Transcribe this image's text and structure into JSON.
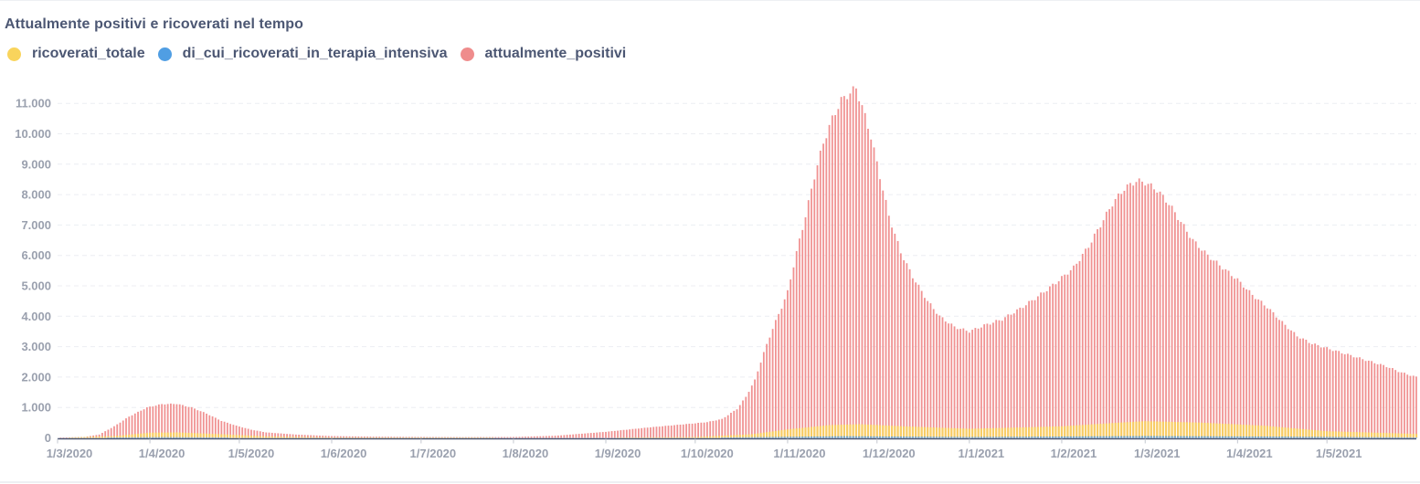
{
  "title": "Attualmente positivi e ricoverati nel tempo",
  "legend": [
    {
      "label": "ricoverati_totale",
      "color": "#f9d45c"
    },
    {
      "label": "di_cui_ricoverati_in_terapia_intensiva",
      "color": "#509ee3"
    },
    {
      "label": "attualmente_positivi",
      "color": "#ef8c8c"
    }
  ],
  "chart_data": {
    "type": "bar",
    "ylim": [
      0,
      11500
    ],
    "yticks": [
      0,
      1000,
      2000,
      3000,
      4000,
      5000,
      6000,
      7000,
      8000,
      9000,
      10000,
      11000
    ],
    "ytick_labels": [
      "0",
      "1.000",
      "2.000",
      "3.000",
      "4.000",
      "5.000",
      "6.000",
      "7.000",
      "8.000",
      "9.000",
      "10.000",
      "11.000"
    ],
    "x_start": "2020-03-01",
    "x_end": "2021-05-31",
    "xticks": [
      "2020-03-01",
      "2020-04-01",
      "2020-05-01",
      "2020-06-01",
      "2020-07-01",
      "2020-08-01",
      "2020-09-01",
      "2020-10-01",
      "2020-11-01",
      "2020-12-01",
      "2021-01-01",
      "2021-02-01",
      "2021-03-01",
      "2021-04-01",
      "2021-05-01"
    ],
    "xtick_labels": [
      "1/3/2020",
      "1/4/2020",
      "1/5/2020",
      "1/6/2020",
      "1/7/2020",
      "1/8/2020",
      "1/9/2020",
      "1/10/2020",
      "1/11/2020",
      "1/12/2020",
      "1/1/2021",
      "1/2/2021",
      "1/3/2021",
      "1/4/2021",
      "1/5/2021"
    ],
    "grid": true,
    "legend_position": "top-left",
    "series": [
      {
        "name": "attualmente_positivi",
        "color": "#ef8c8c",
        "points": [
          [
            "2020-03-01",
            10
          ],
          [
            "2020-03-10",
            30
          ],
          [
            "2020-03-15",
            110
          ],
          [
            "2020-03-20",
            380
          ],
          [
            "2020-03-25",
            700
          ],
          [
            "2020-03-31",
            1000
          ],
          [
            "2020-04-05",
            1110
          ],
          [
            "2020-04-10",
            1120
          ],
          [
            "2020-04-15",
            1000
          ],
          [
            "2020-04-20",
            800
          ],
          [
            "2020-04-25",
            560
          ],
          [
            "2020-04-30",
            400
          ],
          [
            "2020-05-05",
            270
          ],
          [
            "2020-05-10",
            180
          ],
          [
            "2020-05-20",
            110
          ],
          [
            "2020-06-01",
            60
          ],
          [
            "2020-06-15",
            40
          ],
          [
            "2020-07-01",
            30
          ],
          [
            "2020-07-15",
            25
          ],
          [
            "2020-08-01",
            30
          ],
          [
            "2020-08-15",
            70
          ],
          [
            "2020-09-01",
            200
          ],
          [
            "2020-09-15",
            340
          ],
          [
            "2020-10-01",
            480
          ],
          [
            "2020-10-05",
            520
          ],
          [
            "2020-10-10",
            620
          ],
          [
            "2020-10-15",
            950
          ],
          [
            "2020-10-18",
            1350
          ],
          [
            "2020-10-21",
            1900
          ],
          [
            "2020-10-24",
            2800
          ],
          [
            "2020-10-27",
            3600
          ],
          [
            "2020-10-30",
            4300
          ],
          [
            "2020-11-01",
            4800
          ],
          [
            "2020-11-04",
            6100
          ],
          [
            "2020-11-07",
            7300
          ],
          [
            "2020-11-10",
            8600
          ],
          [
            "2020-11-13",
            9700
          ],
          [
            "2020-11-16",
            10500
          ],
          [
            "2020-11-19",
            11100
          ],
          [
            "2020-11-22",
            11350
          ],
          [
            "2020-11-24",
            11500
          ],
          [
            "2020-11-26",
            10900
          ],
          [
            "2020-11-29",
            9900
          ],
          [
            "2020-12-02",
            8600
          ],
          [
            "2020-12-05",
            7300
          ],
          [
            "2020-12-09",
            6100
          ],
          [
            "2020-12-13",
            5300
          ],
          [
            "2020-12-18",
            4500
          ],
          [
            "2020-12-22",
            4000
          ],
          [
            "2020-12-27",
            3650
          ],
          [
            "2021-01-01",
            3500
          ],
          [
            "2021-01-06",
            3700
          ],
          [
            "2021-01-12",
            3900
          ],
          [
            "2021-01-18",
            4250
          ],
          [
            "2021-01-24",
            4650
          ],
          [
            "2021-01-30",
            5100
          ],
          [
            "2021-02-05",
            5600
          ],
          [
            "2021-02-10",
            6300
          ],
          [
            "2021-02-14",
            7000
          ],
          [
            "2021-02-18",
            7700
          ],
          [
            "2021-02-22",
            8200
          ],
          [
            "2021-02-26",
            8450
          ],
          [
            "2021-03-01",
            8400
          ],
          [
            "2021-03-05",
            8150
          ],
          [
            "2021-03-09",
            7700
          ],
          [
            "2021-03-13",
            7100
          ],
          [
            "2021-03-17",
            6500
          ],
          [
            "2021-03-22",
            6000
          ],
          [
            "2021-03-27",
            5600
          ],
          [
            "2021-04-01",
            5200
          ],
          [
            "2021-04-06",
            4700
          ],
          [
            "2021-04-11",
            4300
          ],
          [
            "2021-04-16",
            3800
          ],
          [
            "2021-04-21",
            3350
          ],
          [
            "2021-04-26",
            3100
          ],
          [
            "2021-05-01",
            2950
          ],
          [
            "2021-05-06",
            2800
          ],
          [
            "2021-05-11",
            2650
          ],
          [
            "2021-05-16",
            2500
          ],
          [
            "2021-05-21",
            2350
          ],
          [
            "2021-05-26",
            2150
          ],
          [
            "2021-05-31",
            2000
          ]
        ]
      },
      {
        "name": "ricoverati_totale",
        "color": "#f9d45c",
        "points": [
          [
            "2020-03-01",
            0
          ],
          [
            "2020-03-20",
            60
          ],
          [
            "2020-04-01",
            170
          ],
          [
            "2020-04-10",
            180
          ],
          [
            "2020-04-25",
            120
          ],
          [
            "2020-05-10",
            50
          ],
          [
            "2020-06-01",
            15
          ],
          [
            "2020-09-01",
            10
          ],
          [
            "2020-10-01",
            30
          ],
          [
            "2020-10-20",
            120
          ],
          [
            "2020-11-01",
            280
          ],
          [
            "2020-11-15",
            420
          ],
          [
            "2020-11-25",
            450
          ],
          [
            "2020-12-10",
            380
          ],
          [
            "2021-01-01",
            300
          ],
          [
            "2021-02-01",
            380
          ],
          [
            "2021-02-20",
            500
          ],
          [
            "2021-03-01",
            550
          ],
          [
            "2021-03-20",
            500
          ],
          [
            "2021-04-10",
            400
          ],
          [
            "2021-05-01",
            220
          ],
          [
            "2021-05-31",
            130
          ]
        ]
      },
      {
        "name": "di_cui_ricoverati_in_terapia_intensiva",
        "color": "#509ee3",
        "points": [
          [
            "2020-03-01",
            0
          ],
          [
            "2020-04-05",
            25
          ],
          [
            "2020-05-10",
            5
          ],
          [
            "2020-10-01",
            3
          ],
          [
            "2020-11-20",
            55
          ],
          [
            "2021-01-01",
            30
          ],
          [
            "2021-03-01",
            60
          ],
          [
            "2021-04-10",
            45
          ],
          [
            "2021-05-31",
            15
          ]
        ]
      }
    ]
  }
}
